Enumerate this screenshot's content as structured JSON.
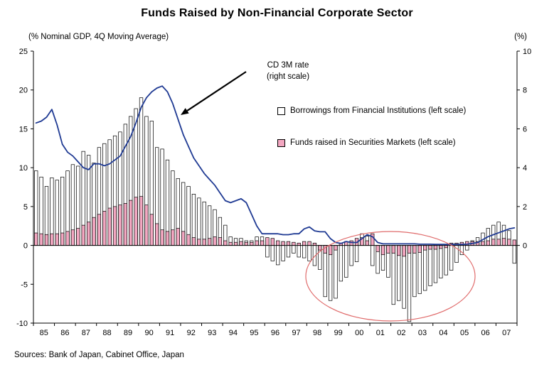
{
  "title": "Funds Raised by Non-Financial Corporate Sector",
  "captions": {
    "left": "(% Nominal GDP, 4Q Moving Average)",
    "right": "(%)"
  },
  "legend": [
    {
      "label": "Borrowings from Financial Institutions (left scale)",
      "swatch_color": "#ffffff"
    },
    {
      "label": "Funds raised in Securities Markets (left scale)",
      "swatch_color": "#f3a7c1"
    }
  ],
  "annotation_label": {
    "line1": "CD 3M rate",
    "line2": "(right scale)"
  },
  "source": "Sources: Bank of Japan, Cabinet Office, Japan",
  "colors": {
    "borrowings_fill": "#ffffff",
    "securities_fill": "#f3a7c1",
    "bar_stroke": "#000000",
    "line": "#1f3a93",
    "ellipse": "#e06c6c",
    "axis": "#000000"
  },
  "chart_data": {
    "type": "bar+line",
    "title": "Funds Raised by Non-Financial Corporate Sector",
    "x_unit": "quarterly, 1985Q1-2007Q4",
    "years": [
      "85",
      "86",
      "87",
      "88",
      "89",
      "90",
      "91",
      "92",
      "93",
      "94",
      "95",
      "96",
      "97",
      "98",
      "99",
      "00",
      "01",
      "02",
      "03",
      "04",
      "05",
      "06",
      "07"
    ],
    "left_axis": {
      "label": "(% Nominal GDP, 4Q Moving Average)",
      "min": -10,
      "max": 25,
      "tick": 5
    },
    "right_axis": {
      "label": "(%)",
      "min": 0,
      "max": 10,
      "tick": 2,
      "note": "right 0 aligned with left 0, right 10 aligned with left 25"
    },
    "grid": false,
    "legend_position": "inside top-right area",
    "series": [
      {
        "name": "Borrowings from Financial Institutions",
        "type": "bar",
        "axis": "left",
        "values": [
          9.6,
          8.8,
          7.6,
          8.7,
          8.4,
          8.8,
          9.6,
          10.4,
          10.2,
          12.1,
          11.6,
          10.6,
          12.6,
          13.1,
          13.6,
          14.1,
          14.6,
          15.6,
          16.6,
          17.6,
          19.0,
          16.6,
          16.0,
          12.6,
          12.4,
          11.0,
          9.6,
          8.6,
          8.1,
          7.6,
          6.6,
          6.1,
          5.6,
          5.1,
          4.6,
          3.6,
          2.6,
          1.1,
          0.9,
          0.9,
          0.6,
          0.6,
          1.1,
          1.1,
          -1.5,
          -2.0,
          -2.5,
          -2.0,
          -1.5,
          -1.0,
          -1.5,
          -1.6,
          -2.0,
          -2.6,
          -3.1,
          -6.6,
          -7.1,
          -6.8,
          -4.6,
          -4.1,
          -2.6,
          -2.1,
          1.5,
          1.2,
          -2.6,
          -3.6,
          -3.2,
          -4.1,
          -7.6,
          -7.1,
          -8.1,
          -9.8,
          -6.6,
          -6.2,
          -5.8,
          -5.2,
          -4.8,
          -4.2,
          -3.8,
          -3.2,
          -2.2,
          -1.2,
          -0.6,
          0.6,
          1.0,
          1.6,
          2.2,
          2.6,
          3.0,
          2.6,
          1.9,
          -2.3
        ]
      },
      {
        "name": "Funds raised in Securities Markets",
        "type": "bar",
        "axis": "left",
        "values": [
          1.6,
          1.5,
          1.4,
          1.5,
          1.5,
          1.6,
          1.8,
          2.0,
          2.2,
          2.6,
          3.0,
          3.6,
          4.0,
          4.4,
          4.8,
          5.0,
          5.2,
          5.4,
          5.8,
          6.2,
          6.3,
          5.2,
          4.0,
          2.8,
          2.0,
          1.8,
          2.0,
          2.2,
          1.8,
          1.4,
          1.0,
          0.8,
          0.8,
          0.9,
          1.1,
          1.0,
          0.6,
          0.4,
          0.4,
          0.5,
          0.4,
          0.4,
          0.6,
          0.6,
          1.0,
          0.9,
          0.6,
          0.5,
          0.5,
          0.4,
          0.3,
          0.5,
          0.5,
          0.3,
          -0.6,
          -1.0,
          -1.2,
          -0.6,
          0.3,
          0.5,
          0.6,
          0.9,
          1.0,
          0.6,
          1.5,
          -0.8,
          -1.2,
          -1.0,
          -1.0,
          -1.3,
          -1.4,
          -1.0,
          -1.0,
          -0.9,
          -0.6,
          -0.5,
          -0.5,
          -0.4,
          -0.3,
          0.3,
          0.3,
          0.4,
          0.5,
          0.5,
          0.5,
          0.5,
          0.6,
          0.8,
          0.8,
          0.9,
          0.8,
          0.7
        ]
      },
      {
        "name": "CD 3M rate",
        "type": "line",
        "axis": "right",
        "values": [
          6.3,
          6.4,
          6.6,
          7.0,
          6.2,
          5.2,
          4.8,
          4.6,
          4.3,
          4.0,
          3.9,
          4.2,
          4.2,
          4.1,
          4.2,
          4.4,
          4.6,
          5.1,
          5.6,
          6.3,
          7.1,
          7.6,
          7.9,
          8.1,
          8.2,
          7.9,
          7.3,
          6.5,
          5.7,
          5.1,
          4.5,
          4.1,
          3.7,
          3.4,
          3.1,
          2.7,
          2.3,
          2.2,
          2.3,
          2.4,
          2.2,
          1.6,
          1.0,
          0.6,
          0.6,
          0.6,
          0.6,
          0.55,
          0.55,
          0.6,
          0.6,
          0.85,
          0.95,
          0.75,
          0.7,
          0.7,
          0.35,
          0.15,
          0.1,
          0.2,
          0.15,
          0.15,
          0.35,
          0.55,
          0.45,
          0.15,
          0.08,
          0.08,
          0.08,
          0.08,
          0.08,
          0.08,
          0.08,
          0.06,
          0.06,
          0.06,
          0.05,
          0.05,
          0.05,
          0.05,
          0.05,
          0.05,
          0.06,
          0.1,
          0.15,
          0.3,
          0.45,
          0.55,
          0.65,
          0.75,
          0.85,
          0.9
        ]
      }
    ],
    "annotations": {
      "ellipse": {
        "cx": 549,
        "cy": 389,
        "rx": 119,
        "ry": 63,
        "meaning": "highlights negative fund raising ~1998-2005"
      },
      "arrow": {
        "tail_x": 346,
        "tail_y": 101,
        "tip_x": 254,
        "tip_y": 162,
        "points_to": "CD 3M rate line"
      }
    }
  }
}
